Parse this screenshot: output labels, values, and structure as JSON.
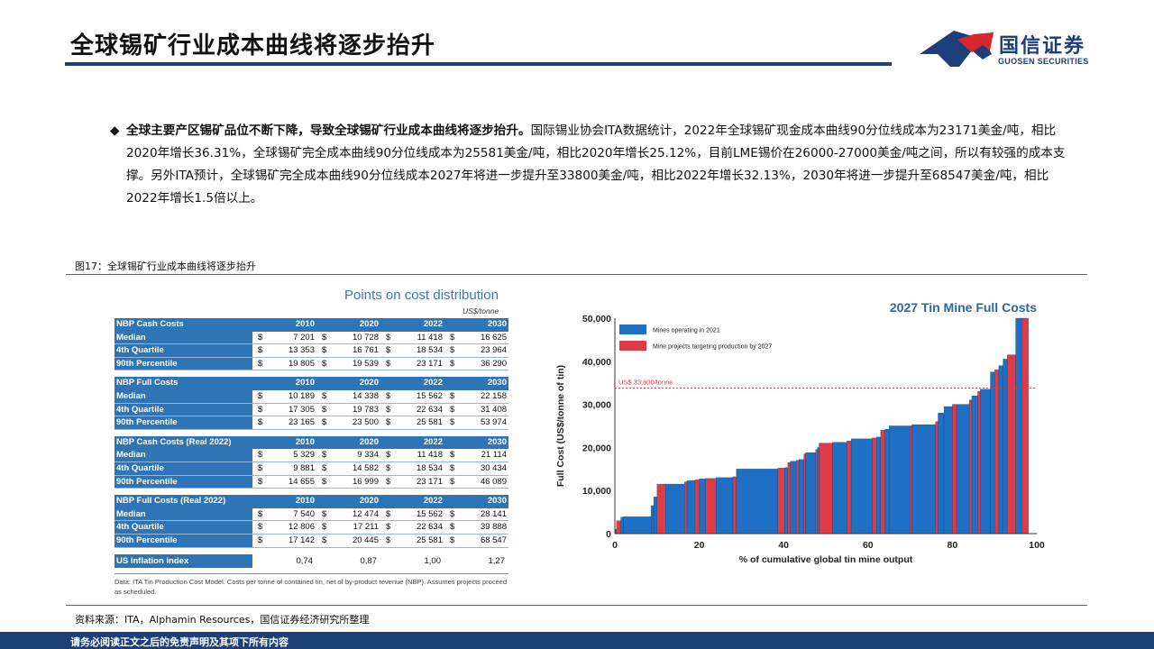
{
  "header": {
    "title": "全球锡矿行业成本曲线将逐步抬升",
    "logo_name": "国信证券",
    "logo_en": "GUOSEN SECURITIES"
  },
  "paragraph": {
    "bullet": "◆",
    "lead": "全球主要产区锡矿品位不断下降，导致全球锡矿行业成本曲线将逐步抬升。",
    "text": "国际锡业协会ITA数据统计，2022年全球锡矿现金成本曲线90分位线成本为23171美金/吨，相比2020年增长36.31%，全球锡矿完全成本曲线90分位线成本为25581美金/吨，相比2020年增长25.12%，目前LME锡价在26000-27000美金/吨之间，所以有较强的成本支撑。另外ITA预计，全球锡矿完全成本曲线90分位线成本2027年将进一步提升至33800美金/吨，相比2022年增长32.13%，2030年将进一步提升至68547美金/吨，相比2022年增长1.5倍以上。"
  },
  "figure": {
    "label": "图17：全球锡矿行业成本曲线将逐步抬升",
    "source": "资料来源：ITA，Alphamin Resources，国信证券经济研究所整理"
  },
  "footer": {
    "text": "请务必阅读正文之后的免责声明及其项下所有内容"
  },
  "cost_table": {
    "title": "Points on cost distribution",
    "unit": "US$/tonne",
    "currency": "$",
    "years": [
      "2010",
      "2020",
      "2022",
      "2030"
    ],
    "blocks": [
      {
        "header": "NBP Cash Costs",
        "rows": [
          {
            "label": "Median",
            "values": [
              "7 201",
              "10 728",
              "11 418",
              "16 625"
            ]
          },
          {
            "label": "4th Quartile",
            "values": [
              "13 353",
              "16 761",
              "18 534",
              "23 964"
            ]
          },
          {
            "label": "90th Percentile",
            "values": [
              "19 805",
              "19 539",
              "23 171",
              "36 290"
            ]
          }
        ]
      },
      {
        "header": "NBP Full Costs",
        "rows": [
          {
            "label": "Median",
            "values": [
              "10 189",
              "14 338",
              "15 562",
              "22 158"
            ]
          },
          {
            "label": "4th Quartile",
            "values": [
              "17 305",
              "19 783",
              "22 634",
              "31 408"
            ]
          },
          {
            "label": "90th Percentile",
            "values": [
              "23 165",
              "23 500",
              "25 581",
              "53 974"
            ]
          }
        ]
      },
      {
        "header": "NBP Cash Costs (Real 2022)",
        "rows": [
          {
            "label": "Median",
            "values": [
              "5 329",
              "9 334",
              "11 418",
              "21 114"
            ]
          },
          {
            "label": "4th Quartile",
            "values": [
              "9 881",
              "14 582",
              "18 534",
              "30 434"
            ]
          },
          {
            "label": "90th Percentile",
            "values": [
              "14 655",
              "16 999",
              "23 171",
              "46 089"
            ]
          }
        ]
      },
      {
        "header": "NBP Full Costs (Real 2022)",
        "rows": [
          {
            "label": "Median",
            "values": [
              "7 540",
              "12 474",
              "15 562",
              "28 141"
            ]
          },
          {
            "label": "4th Quartile",
            "values": [
              "12 806",
              "17 211",
              "22 634",
              "39 888"
            ]
          },
          {
            "label": "90th Percentile",
            "values": [
              "17 142",
              "20 445",
              "25 581",
              "68 547"
            ]
          }
        ]
      }
    ],
    "inflation": {
      "label": "US inflation index",
      "values": [
        "0,74",
        "0,87",
        "1,00",
        "1,27"
      ]
    },
    "note": "Data: ITA Tin Production Cost Model. Costs per tonne of contained tin, net of by-product revenue (NBP). Assumes projects proceed as scheduled."
  },
  "chart_data": {
    "type": "bar",
    "title": "2027 Tin Mine Full Costs",
    "xlabel": "% of cumulative global tin mine output",
    "ylabel": "Full Cost (US$/tonne of tin)",
    "xlim": [
      0,
      100
    ],
    "ylim": [
      0,
      50000
    ],
    "xticks": [
      "0",
      "20",
      "40",
      "60",
      "80",
      "100"
    ],
    "yticks": [
      "0",
      "10,000",
      "20,000",
      "30,000",
      "40,000",
      "50,000"
    ],
    "legend": [
      "Mines operating in 2021",
      "Mine projects targeting production by 2027"
    ],
    "legend_position": "top-left",
    "reference_line": {
      "label": "US$ 33,800/tonne",
      "value": 33800
    },
    "colors": {
      "operating": "#1f6fc4",
      "projects": "#e03a45",
      "reference": "#e03a45",
      "title": "#2a66b0"
    },
    "segments": [
      {
        "x0": 0,
        "x1": 0.4,
        "cost": 1000,
        "type": "operating"
      },
      {
        "x0": 0.4,
        "x1": 1.4,
        "cost": 3000,
        "type": "projects"
      },
      {
        "x0": 1.4,
        "x1": 2.0,
        "cost": 3800,
        "type": "operating"
      },
      {
        "x0": 2.0,
        "x1": 8.6,
        "cost": 3900,
        "type": "operating"
      },
      {
        "x0": 8.6,
        "x1": 9.2,
        "cost": 6500,
        "type": "operating"
      },
      {
        "x0": 9.2,
        "x1": 10.0,
        "cost": 8500,
        "type": "operating"
      },
      {
        "x0": 10.0,
        "x1": 12.0,
        "cost": 11500,
        "type": "projects"
      },
      {
        "x0": 12.0,
        "x1": 16.5,
        "cost": 11500,
        "type": "operating"
      },
      {
        "x0": 16.5,
        "x1": 17.1,
        "cost": 12000,
        "type": "projects"
      },
      {
        "x0": 17.1,
        "x1": 19.0,
        "cost": 12300,
        "type": "operating"
      },
      {
        "x0": 19.0,
        "x1": 20.0,
        "cost": 12500,
        "type": "projects"
      },
      {
        "x0": 20.0,
        "x1": 21.5,
        "cost": 12700,
        "type": "operating"
      },
      {
        "x0": 21.5,
        "x1": 24.0,
        "cost": 12800,
        "type": "projects"
      },
      {
        "x0": 24.0,
        "x1": 28.0,
        "cost": 13000,
        "type": "operating"
      },
      {
        "x0": 28.0,
        "x1": 28.8,
        "cost": 13200,
        "type": "projects"
      },
      {
        "x0": 28.8,
        "x1": 38.6,
        "cost": 15000,
        "type": "operating"
      },
      {
        "x0": 38.6,
        "x1": 40.2,
        "cost": 15200,
        "type": "projects"
      },
      {
        "x0": 40.2,
        "x1": 41.0,
        "cost": 15300,
        "type": "operating"
      },
      {
        "x0": 41.0,
        "x1": 41.6,
        "cost": 16500,
        "type": "projects"
      },
      {
        "x0": 41.6,
        "x1": 43.0,
        "cost": 16800,
        "type": "operating"
      },
      {
        "x0": 43.0,
        "x1": 43.6,
        "cost": 17000,
        "type": "projects"
      },
      {
        "x0": 43.6,
        "x1": 44.8,
        "cost": 17200,
        "type": "operating"
      },
      {
        "x0": 44.8,
        "x1": 45.2,
        "cost": 18500,
        "type": "projects"
      },
      {
        "x0": 45.2,
        "x1": 47.6,
        "cost": 18800,
        "type": "operating"
      },
      {
        "x0": 47.6,
        "x1": 48.0,
        "cost": 19500,
        "type": "projects"
      },
      {
        "x0": 48.0,
        "x1": 48.4,
        "cost": 20000,
        "type": "operating"
      },
      {
        "x0": 48.4,
        "x1": 51.6,
        "cost": 21000,
        "type": "projects"
      },
      {
        "x0": 51.6,
        "x1": 55.0,
        "cost": 21200,
        "type": "operating"
      },
      {
        "x0": 55.0,
        "x1": 56.0,
        "cost": 21500,
        "type": "projects"
      },
      {
        "x0": 56.0,
        "x1": 61.0,
        "cost": 22000,
        "type": "operating"
      },
      {
        "x0": 61.0,
        "x1": 62.0,
        "cost": 22200,
        "type": "projects"
      },
      {
        "x0": 62.0,
        "x1": 63.0,
        "cost": 22400,
        "type": "operating"
      },
      {
        "x0": 63.0,
        "x1": 64.0,
        "cost": 24000,
        "type": "projects"
      },
      {
        "x0": 64.0,
        "x1": 65.0,
        "cost": 24200,
        "type": "operating"
      },
      {
        "x0": 65.0,
        "x1": 70.0,
        "cost": 25000,
        "type": "operating"
      },
      {
        "x0": 70.0,
        "x1": 70.4,
        "cost": 25000,
        "type": "projects"
      },
      {
        "x0": 70.4,
        "x1": 76.0,
        "cost": 25300,
        "type": "operating"
      },
      {
        "x0": 76.0,
        "x1": 76.6,
        "cost": 26000,
        "type": "projects"
      },
      {
        "x0": 76.6,
        "x1": 78.0,
        "cost": 28000,
        "type": "operating"
      },
      {
        "x0": 78.0,
        "x1": 80.0,
        "cost": 29500,
        "type": "operating"
      },
      {
        "x0": 80.0,
        "x1": 81.0,
        "cost": 30000,
        "type": "projects"
      },
      {
        "x0": 81.0,
        "x1": 84.0,
        "cost": 30000,
        "type": "operating"
      },
      {
        "x0": 84.0,
        "x1": 84.6,
        "cost": 31000,
        "type": "projects"
      },
      {
        "x0": 84.6,
        "x1": 86.0,
        "cost": 32000,
        "type": "operating"
      },
      {
        "x0": 86.0,
        "x1": 86.6,
        "cost": 33000,
        "type": "projects"
      },
      {
        "x0": 86.6,
        "x1": 89.0,
        "cost": 33500,
        "type": "operating"
      },
      {
        "x0": 89.0,
        "x1": 90.0,
        "cost": 37500,
        "type": "operating"
      },
      {
        "x0": 90.0,
        "x1": 91.0,
        "cost": 38000,
        "type": "projects"
      },
      {
        "x0": 91.0,
        "x1": 92.0,
        "cost": 39000,
        "type": "operating"
      },
      {
        "x0": 92.0,
        "x1": 93.0,
        "cost": 40500,
        "type": "operating"
      },
      {
        "x0": 93.0,
        "x1": 95.0,
        "cost": 41500,
        "type": "projects"
      },
      {
        "x0": 95.0,
        "x1": 96.4,
        "cost": 50000,
        "type": "operating"
      },
      {
        "x0": 96.4,
        "x1": 98.0,
        "cost": 50000,
        "type": "projects"
      }
    ]
  }
}
